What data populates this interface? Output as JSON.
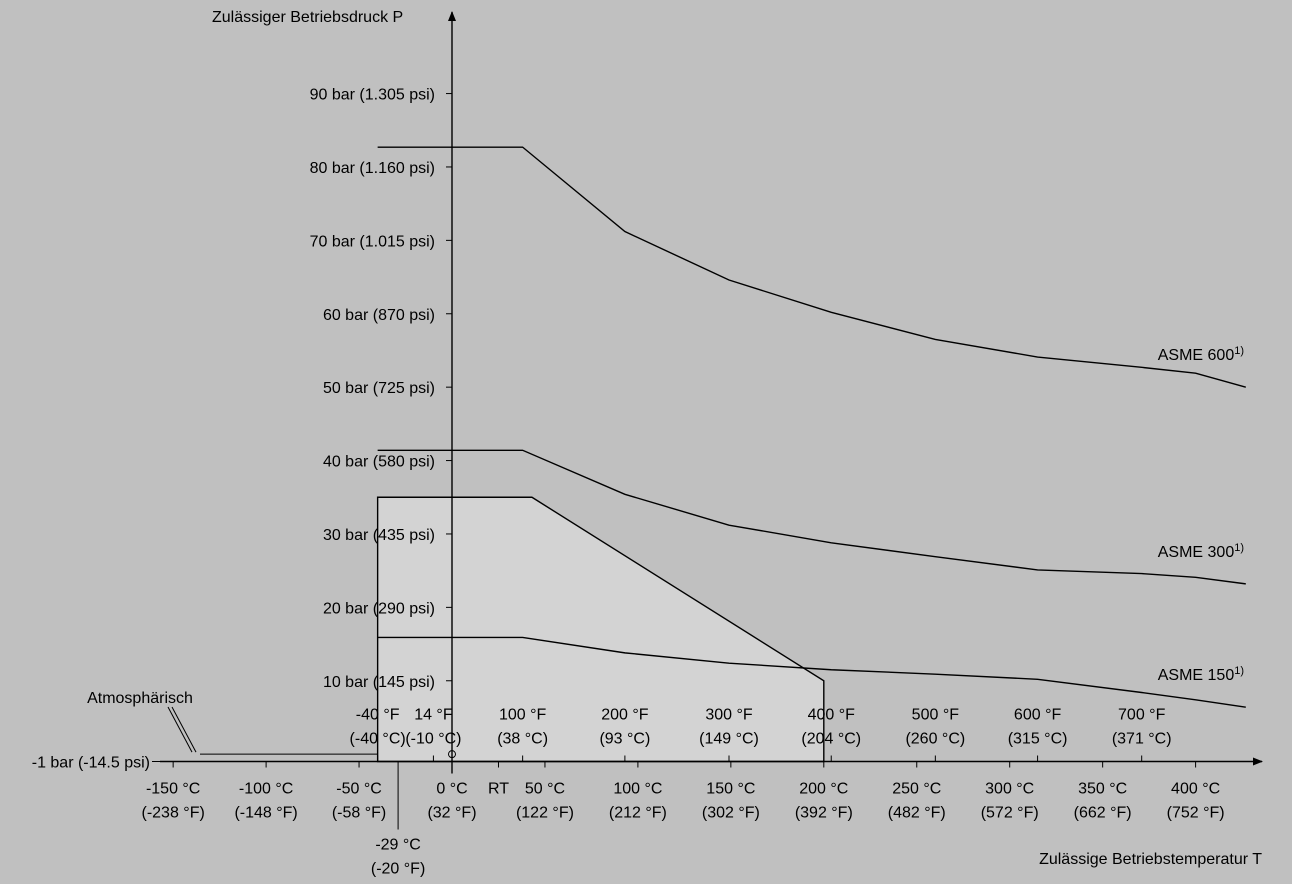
{
  "chart_data": {
    "type": "line",
    "ylabel": "Zulässiger Betriebsdruck P",
    "xlabel": "Zulässige Betriebstemperatur T",
    "x_unit": "°C",
    "y_unit": "bar",
    "xlim": [
      -160,
      430
    ],
    "ylim": [
      -1,
      98
    ],
    "y_ticks": [
      {
        "value": 90,
        "label": "90 bar (1.305 psi)"
      },
      {
        "value": 80,
        "label": "80 bar (1.160 psi)"
      },
      {
        "value": 70,
        "label": "70 bar (1.015 psi)"
      },
      {
        "value": 60,
        "label": "60 bar (870 psi)"
      },
      {
        "value": 50,
        "label": "50 bar (725 psi)"
      },
      {
        "value": 40,
        "label": "40 bar (580 psi)"
      },
      {
        "value": 30,
        "label": "30 bar (435 psi)"
      },
      {
        "value": 20,
        "label": "20 bar (290 psi)"
      },
      {
        "value": 10,
        "label": "10 bar (145 psi)"
      },
      {
        "value": -1,
        "label": "-1 bar (-14.5 psi)"
      }
    ],
    "x_ticks_celsius": [
      {
        "value": -150,
        "line1": "-150 °C",
        "line2": "(-238 °F)"
      },
      {
        "value": -100,
        "line1": "-100 °C",
        "line2": "(-148 °F)"
      },
      {
        "value": -50,
        "line1": "-50 °C",
        "line2": "(-58 °F)"
      },
      {
        "value": 0,
        "line1": "0 °C",
        "line2": "(32 °F)"
      },
      {
        "value": 50,
        "line1": "50 °C",
        "line2": "(122 °F)"
      },
      {
        "value": 100,
        "line1": "100 °C",
        "line2": "(212 °F)"
      },
      {
        "value": 150,
        "line1": "150 °C",
        "line2": "(302 °F)"
      },
      {
        "value": 200,
        "line1": "200 °C",
        "line2": "(392 °F)"
      },
      {
        "value": 250,
        "line1": "250 °C",
        "line2": "(482 °F)"
      },
      {
        "value": 300,
        "line1": "300 °C",
        "line2": "(572 °F)"
      },
      {
        "value": 350,
        "line1": "350 °C",
        "line2": "(662 °F)"
      },
      {
        "value": 400,
        "line1": "400 °C",
        "line2": "(752 °F)"
      }
    ],
    "x_ticks_fahrenheit": [
      {
        "value": -40,
        "line1": "-40 °F",
        "line2": "(-40 °C)"
      },
      {
        "value": -10,
        "line1": "14 °F",
        "line2": "(-10 °C)"
      },
      {
        "value": 38,
        "line1": "100 °F",
        "line2": "(38 °C)"
      },
      {
        "value": 93,
        "line1": "200 °F",
        "line2": "(93 °C)"
      },
      {
        "value": 149,
        "line1": "300 °F",
        "line2": "(149 °C)"
      },
      {
        "value": 204,
        "line1": "400 °F",
        "line2": "(204 °C)"
      },
      {
        "value": 260,
        "line1": "500 °F",
        "line2": "(260 °C)"
      },
      {
        "value": 315,
        "line1": "600 °F",
        "line2": "(315 °C)"
      },
      {
        "value": 371,
        "line1": "700 °F",
        "line2": "(371 °C)"
      }
    ],
    "rt_marker": {
      "value": 25,
      "label": "RT"
    },
    "min_temp_marker": {
      "value": -29,
      "line1": "-29 °C",
      "line2": "(-20 °F)"
    },
    "atmospheric": {
      "value": 0,
      "label": "Atmosphärisch"
    },
    "series": [
      {
        "name": "ASME 600",
        "superscript": "1)",
        "x": [
          -40,
          38,
          93,
          149,
          204,
          260,
          315,
          371,
          400,
          427
        ],
        "y": [
          82.7,
          82.7,
          71.2,
          64.6,
          60.2,
          56.5,
          54.1,
          52.7,
          51.9,
          50.0
        ]
      },
      {
        "name": "ASME 300",
        "superscript": "1)",
        "x": [
          -40,
          38,
          93,
          149,
          204,
          260,
          315,
          371,
          400,
          427
        ],
        "y": [
          41.4,
          41.4,
          35.4,
          31.2,
          28.8,
          26.9,
          25.1,
          24.6,
          24.1,
          23.2
        ]
      },
      {
        "name": "ASME 150",
        "superscript": "1)",
        "x": [
          -40,
          38,
          93,
          149,
          204,
          260,
          315,
          371,
          400,
          427
        ],
        "y": [
          15.9,
          15.9,
          13.8,
          12.4,
          11.5,
          10.9,
          10.2,
          8.4,
          7.4,
          6.4
        ]
      }
    ],
    "region": {
      "x": [
        -40,
        -40,
        43,
        200,
        200
      ],
      "y": [
        -1,
        35,
        35,
        10,
        -1
      ]
    }
  }
}
